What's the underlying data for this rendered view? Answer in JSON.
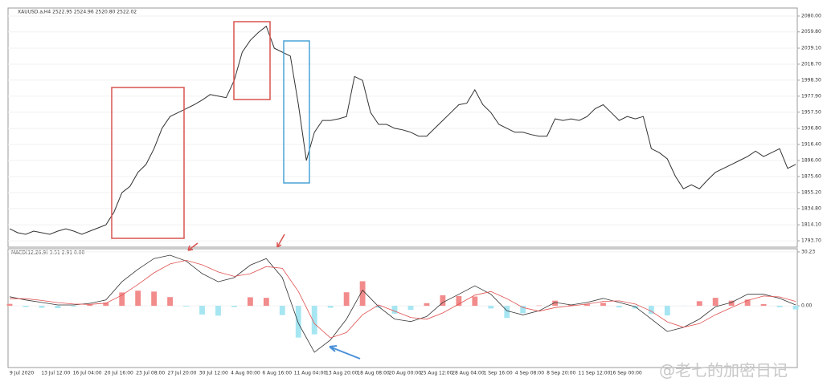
{
  "chart_data": [
    {
      "type": "line",
      "title": "XAUUSD.a,H4  2522.95 2524.96 2520.80 2522.02",
      "color": "#333333",
      "ylim": [
        1785.6,
        2090.2
      ],
      "yticks": [
        {
          "value": 2080,
          "label": "2080.00"
        },
        {
          "value": 2059.8,
          "label": "2059.80"
        },
        {
          "value": 2039.1,
          "label": "2039.10"
        },
        {
          "value": 2018.7,
          "label": "2018.70"
        },
        {
          "value": 1998.3,
          "label": "1998.30"
        },
        {
          "value": 1977.9,
          "label": "1977.90"
        },
        {
          "value": 1957.5,
          "label": "1957.50"
        },
        {
          "value": 1936.8,
          "label": "1936.80"
        },
        {
          "value": 1916.4,
          "label": "1916.40"
        },
        {
          "value": 1896,
          "label": "1896.00"
        },
        {
          "value": 1875.6,
          "label": "1875.60"
        },
        {
          "value": 1855.2,
          "label": "1855.20"
        },
        {
          "value": 1834.8,
          "label": "1834.80"
        },
        {
          "value": 1814.1,
          "label": "1814.10"
        },
        {
          "value": 1793.7,
          "label": "1793.70"
        }
      ],
      "series": [
        {
          "color": "#333333",
          "values": [
            1809,
            1804,
            1802,
            1806,
            1804,
            1802,
            1806,
            1809,
            1806,
            1802,
            1806,
            1810,
            1814,
            1830,
            1855,
            1863,
            1881,
            1891,
            1911,
            1937,
            1952,
            1957,
            1962,
            1967,
            1973,
            1980,
            1978,
            1976,
            1998,
            2034,
            2049,
            2059,
            2067,
            2039,
            2034,
            2029,
            1967,
            1896,
            1932,
            1947,
            1947,
            1949,
            1952,
            2003,
            1998,
            1957,
            1942,
            1942,
            1937,
            1935,
            1932,
            1927,
            1927,
            1937,
            1947,
            1957,
            1967,
            1969,
            1986,
            1967,
            1957,
            1942,
            1937,
            1932,
            1932,
            1929,
            1927,
            1927,
            1949,
            1947,
            1949,
            1947,
            1952,
            1962,
            1967,
            1957,
            1947,
            1952,
            1949,
            1952,
            1911,
            1906,
            1898,
            1876,
            1860,
            1865,
            1860,
            1871,
            1881,
            1886,
            1891,
            1896,
            1901,
            1908,
            1901,
            1906,
            1911,
            1886,
            1891
          ]
        }
      ]
    },
    {
      "type": "macd",
      "title": "MACD(12,26,9) 3.51 2.91 0.00",
      "ylim": [
        -34.6,
        32.0
      ],
      "yticks": [
        30.23,
        {
          "value": 0,
          "label": "0.00"
        }
      ],
      "x_tick_labels": [
        "9 Jul 2020",
        "13 Jul 12:00",
        "16 Jul 04:00",
        "20 Jul 16:00",
        "23 Jul 08:00",
        "27 Jul 20:00",
        "30 Jul 12:00",
        "4 Aug 00:00",
        "6 Aug 16:00",
        "11 Aug 04:00",
        "13 Aug 20:00",
        "18 Aug 08:00",
        "20 Aug 00:00",
        "25 Aug 12:00",
        "28 Aug 04:00",
        "1 Sep 16:00",
        "4 Sep 08:00",
        "8 Sep 20:00",
        "11 Sep 12:00",
        "16 Sep 00:00"
      ],
      "histogram": {
        "positive_color": "#f28b8b",
        "negative_color": "#a6e6f2",
        "values": [
          1.1,
          -0.7,
          -1.1,
          -1.3,
          -0.5,
          0.6,
          1.8,
          7.5,
          8.5,
          8.0,
          4.9,
          -0.4,
          -4.9,
          -5.5,
          -0.7,
          4.8,
          4.5,
          -5.2,
          -17.8,
          -16.0,
          -1.1,
          7.6,
          13.8,
          -1.0,
          -4.4,
          -2.3,
          1.5,
          5.9,
          5.5,
          5.2,
          -1.5,
          -6.8,
          -4.1,
          0.2,
          2.9,
          0.5,
          0.9,
          1.7,
          -0.9,
          -1.5,
          -4.4,
          -5.4,
          -0.1,
          2.6,
          4.5,
          2.9,
          3.5,
          1.0,
          -0.8,
          -2.0
        ]
      },
      "series": [
        {
          "color": "#333333",
          "values": [
            5.1,
            3.3,
            1.9,
            0.5,
            0.5,
            1.4,
            3.3,
            13.5,
            20.5,
            26.5,
            28.4,
            25.1,
            18.1,
            13.5,
            15.8,
            22.8,
            26.5,
            15.8,
            -9.8,
            -26.0,
            -19.1,
            -7.4,
            8.8,
            -0.5,
            -7.4,
            -8.8,
            -6.0,
            1.9,
            6.5,
            11.2,
            6.5,
            -2.8,
            -5.1,
            -2.8,
            1.9,
            0.5,
            1.9,
            4.2,
            1.9,
            -0.5,
            -7.4,
            -14.4,
            -12.1,
            -7.4,
            -0.5,
            1.9,
            6.5,
            6.5,
            4.2,
            0.5
          ]
        },
        {
          "color": "#e05050",
          "values": [
            4.0,
            4.0,
            3.0,
            1.8,
            1.0,
            0.8,
            1.5,
            6.0,
            12.0,
            18.5,
            23.5,
            25.5,
            23.0,
            19.0,
            16.5,
            18.0,
            22.0,
            21.0,
            8.0,
            -10.0,
            -18.0,
            -15.0,
            -5.0,
            0.5,
            -3.0,
            -6.5,
            -7.5,
            -4.0,
            1.0,
            6.0,
            8.0,
            4.0,
            -1.0,
            -3.0,
            -1.0,
            0.0,
            1.0,
            2.5,
            2.8,
            1.0,
            -3.0,
            -9.0,
            -12.0,
            -10.0,
            -5.0,
            -1.0,
            3.0,
            5.5,
            5.0,
            2.5
          ]
        }
      ]
    }
  ],
  "watermark": "@老七的加密日记"
}
